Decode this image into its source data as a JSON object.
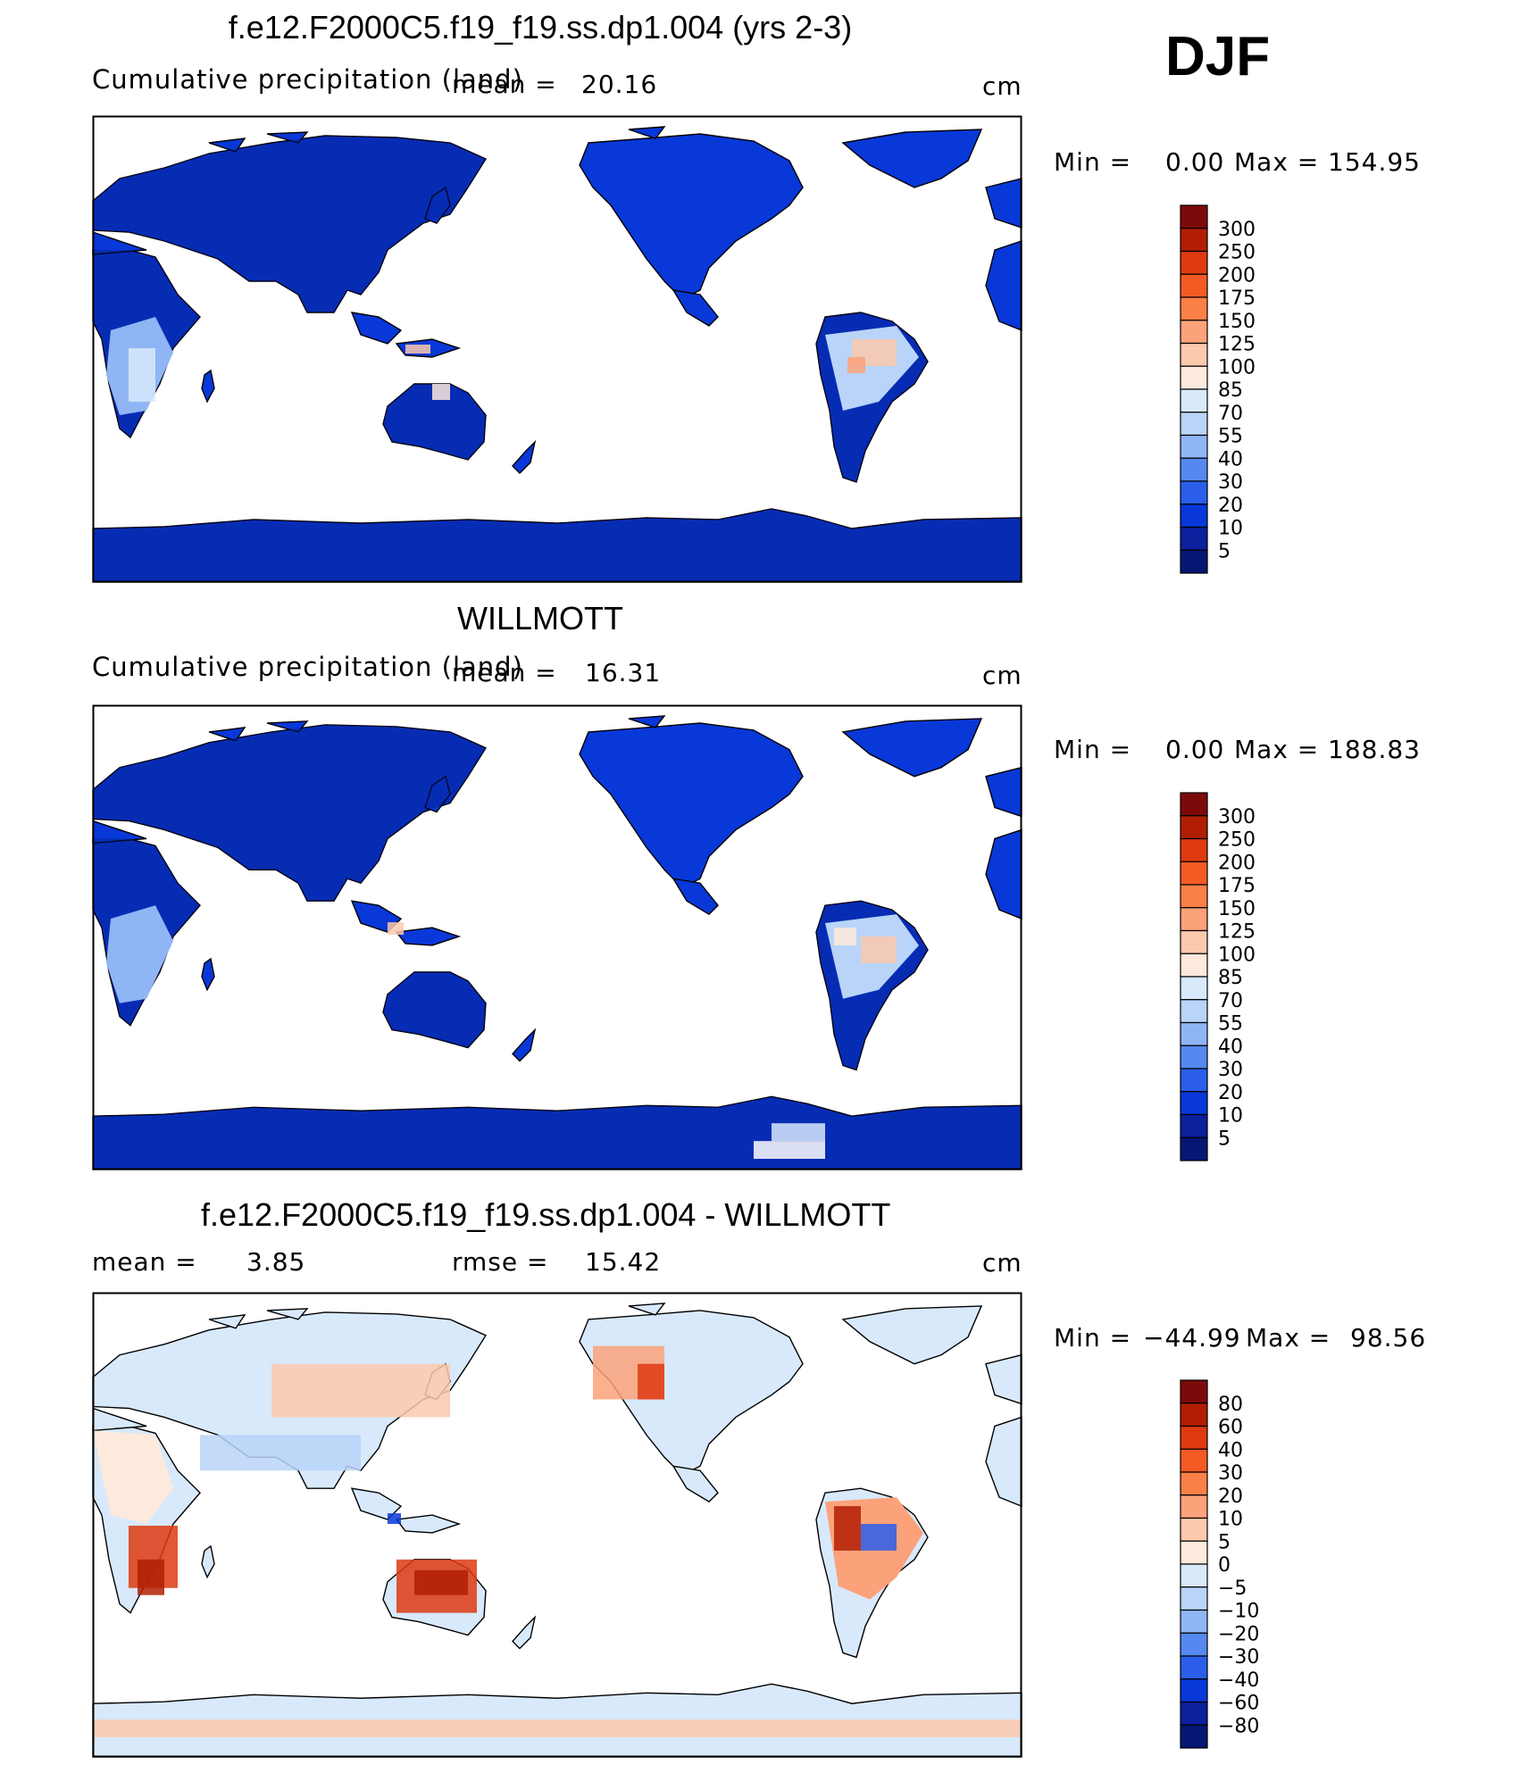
{
  "season_label": "DJF",
  "units": "cm",
  "panels": [
    {
      "title": "f.e12.F2000C5.f19_f19.ss.dp1.004 (yrs 2-3)",
      "subtitle": "Cumulative precipitation (land)",
      "stats": [
        {
          "label": "mean =",
          "value": "20.16"
        }
      ],
      "min_label": "Min =",
      "min_value": "0.00",
      "max_label": "Max =",
      "max_value": "154.95",
      "colorbar_levels": [
        "300",
        "250",
        "200",
        "175",
        "150",
        "125",
        "100",
        "85",
        "70",
        "55",
        "40",
        "30",
        "20",
        "10",
        "5"
      ]
    },
    {
      "title": "WILLMOTT",
      "subtitle": "Cumulative precipitation (land)",
      "stats": [
        {
          "label": "mean =",
          "value": "16.31"
        }
      ],
      "min_label": "Min =",
      "min_value": "0.00",
      "max_label": "Max =",
      "max_value": "188.83",
      "colorbar_levels": [
        "300",
        "250",
        "200",
        "175",
        "150",
        "125",
        "100",
        "85",
        "70",
        "55",
        "40",
        "30",
        "20",
        "10",
        "5"
      ]
    },
    {
      "title": "f.e12.F2000C5.f19_f19.ss.dp1.004 - WILLMOTT",
      "subtitle": "",
      "stats": [
        {
          "label": "mean =",
          "value": "3.85"
        },
        {
          "label": "rmse =",
          "value": "15.42"
        }
      ],
      "min_label": "Min =",
      "min_value": "−44.99",
      "max_label": "Max =",
      "max_value": "98.56",
      "colorbar_levels": [
        "80",
        "60",
        "40",
        "30",
        "20",
        "10",
        "5",
        "0",
        "−5",
        "−10",
        "−20",
        "−30",
        "−40",
        "−60",
        "−80"
      ]
    }
  ],
  "colors": {
    "precip_scale": [
      "#7d0a0a",
      "#b11e04",
      "#de3a10",
      "#f45a24",
      "#fb8048",
      "#fba27a",
      "#fcc9ad",
      "#fdeadc",
      "#d8e9fb",
      "#b9d4f8",
      "#8fb5f4",
      "#5589f0",
      "#2a5eea",
      "#0838d8",
      "#0c1f9c",
      "#061673"
    ],
    "diff_scale": [
      "#7d0a0a",
      "#b11e04",
      "#de3a10",
      "#f45a24",
      "#fb8048",
      "#fba27a",
      "#fcc9ad",
      "#fdeadc",
      "#d8e9fb",
      "#b9d4f8",
      "#8fb5f4",
      "#5589f0",
      "#2a5eea",
      "#0838d8",
      "#0c1f9c",
      "#061673"
    ]
  },
  "chart_data": [
    {
      "type": "heatmap",
      "map": "global land map (Pacific-centered)",
      "title": "f.e12.F2000C5.f19_f19.ss.dp1.004 (yrs 2-3)",
      "subtitle": "Cumulative precipitation (land)",
      "units": "cm",
      "mean": 20.16,
      "min": 0.0,
      "max": 154.95,
      "levels": [
        5,
        10,
        20,
        30,
        40,
        55,
        70,
        85,
        100,
        125,
        150,
        175,
        200,
        250,
        300
      ],
      "colormap": "precip_scale"
    },
    {
      "type": "heatmap",
      "map": "global land map (Pacific-centered)",
      "title": "WILLMOTT",
      "subtitle": "Cumulative precipitation (land)",
      "units": "cm",
      "mean": 16.31,
      "min": 0.0,
      "max": 188.83,
      "levels": [
        5,
        10,
        20,
        30,
        40,
        55,
        70,
        85,
        100,
        125,
        150,
        175,
        200,
        250,
        300
      ],
      "colormap": "precip_scale"
    },
    {
      "type": "heatmap",
      "map": "global land map (Pacific-centered)",
      "title": "f.e12.F2000C5.f19_f19.ss.dp1.004 - WILLMOTT",
      "units": "cm",
      "mean": 3.85,
      "rmse": 15.42,
      "min": -44.99,
      "max": 98.56,
      "levels": [
        -80,
        -60,
        -40,
        -30,
        -20,
        -10,
        -5,
        0,
        5,
        10,
        20,
        30,
        40,
        60,
        80
      ],
      "colormap": "diff_scale"
    }
  ]
}
